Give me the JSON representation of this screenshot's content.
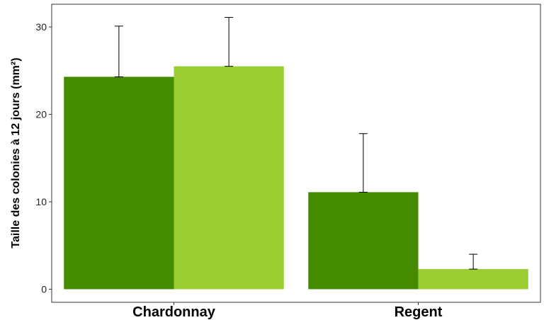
{
  "chart_data": {
    "type": "bar",
    "title": "",
    "xlabel": "",
    "ylabel": "Taille des colonies à 12 jours (mm²)",
    "categories": [
      "Chardonnay",
      "Regent"
    ],
    "series": [
      {
        "color": "#458B00",
        "values": [
          24.3,
          11.1
        ],
        "errors": [
          5.8,
          6.7
        ]
      },
      {
        "color": "#9ACD32",
        "values": [
          25.5,
          2.3
        ],
        "errors": [
          5.6,
          1.7
        ]
      }
    ],
    "ylim": [
      -1.5,
      32.6
    ],
    "yticks": [
      0,
      10,
      20,
      30
    ],
    "grid": false,
    "legend": "none"
  }
}
